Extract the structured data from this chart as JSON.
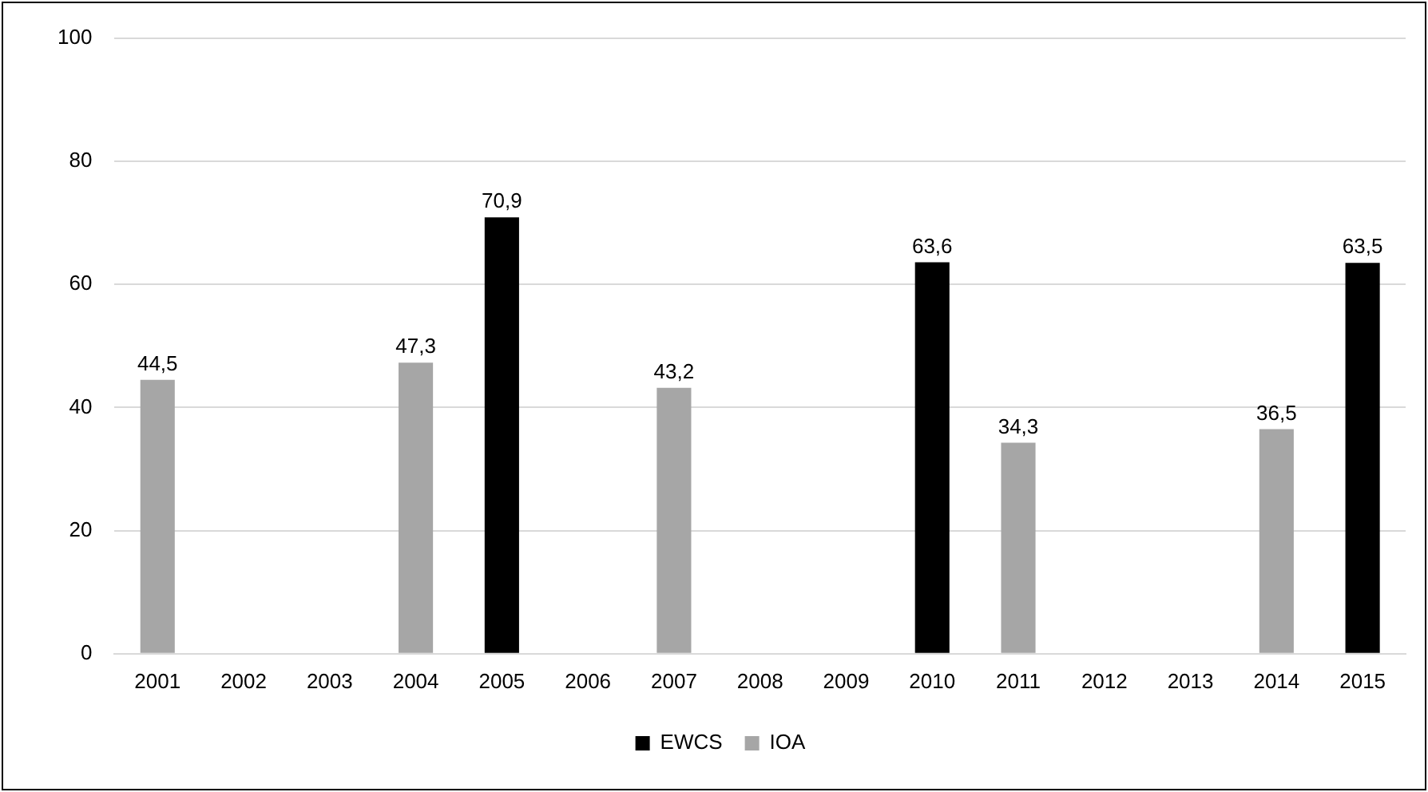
{
  "chart_data": {
    "type": "bar",
    "categories": [
      "2001",
      "2002",
      "2003",
      "2004",
      "2005",
      "2006",
      "2007",
      "2008",
      "2009",
      "2010",
      "2011",
      "2012",
      "2013",
      "2014",
      "2015"
    ],
    "series": [
      {
        "name": "EWCS",
        "color": "#000000",
        "values": [
          null,
          null,
          null,
          null,
          70.9,
          null,
          null,
          null,
          null,
          63.6,
          null,
          null,
          null,
          null,
          63.5
        ],
        "value_labels": [
          null,
          null,
          null,
          null,
          "70,9",
          null,
          null,
          null,
          null,
          "63,6",
          null,
          null,
          null,
          null,
          "63,5"
        ]
      },
      {
        "name": "IOA",
        "color": "#a6a6a6",
        "values": [
          44.5,
          null,
          null,
          47.3,
          null,
          null,
          43.2,
          null,
          null,
          null,
          34.3,
          null,
          null,
          36.5,
          null
        ],
        "value_labels": [
          "44,5",
          null,
          null,
          "47,3",
          null,
          null,
          "43,2",
          null,
          null,
          null,
          "34,3",
          null,
          null,
          "36,5",
          null
        ]
      }
    ],
    "ylim": [
      0,
      100
    ],
    "yticks": [
      0,
      20,
      40,
      60,
      80,
      100
    ],
    "grid": "y",
    "legend": "bottom"
  }
}
